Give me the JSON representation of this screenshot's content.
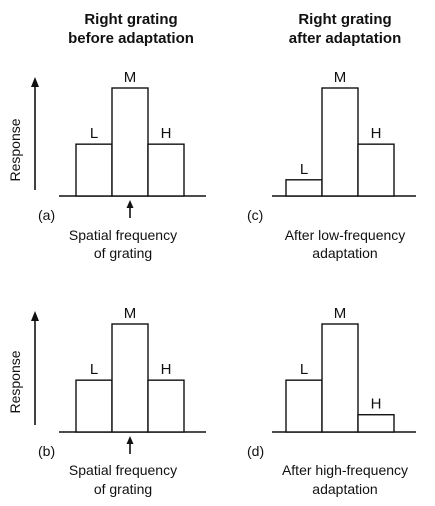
{
  "column_titles": [
    {
      "line1": "Right grating",
      "line2": "before adaptation"
    },
    {
      "line1": "Right grating",
      "line2": "after adaptation"
    }
  ],
  "y_axis_label": "Response",
  "panels": [
    {
      "letter": "(a)",
      "caption_line1": "Spatial frequency",
      "caption_line2": "of grating",
      "has_pointer": true,
      "bars": [
        {
          "label": "L",
          "response": 0.48
        },
        {
          "label": "M",
          "response": 1.0
        },
        {
          "label": "H",
          "response": 0.48
        }
      ]
    },
    {
      "letter": "(c)",
      "caption_line1": "After low-frequency",
      "caption_line2": "adaptation",
      "has_pointer": false,
      "bars": [
        {
          "label": "L",
          "response": 0.15
        },
        {
          "label": "M",
          "response": 1.0
        },
        {
          "label": "H",
          "response": 0.48
        }
      ]
    },
    {
      "letter": "(b)",
      "caption_line1": "Spatial frequency",
      "caption_line2": "of grating",
      "has_pointer": true,
      "bars": [
        {
          "label": "L",
          "response": 0.48
        },
        {
          "label": "M",
          "response": 1.0
        },
        {
          "label": "H",
          "response": 0.48
        }
      ]
    },
    {
      "letter": "(d)",
      "caption_line1": "After high-frequency",
      "caption_line2": "adaptation",
      "has_pointer": false,
      "bars": [
        {
          "label": "L",
          "response": 0.48
        },
        {
          "label": "M",
          "response": 1.0
        },
        {
          "label": "H",
          "response": 0.16
        }
      ]
    }
  ]
}
